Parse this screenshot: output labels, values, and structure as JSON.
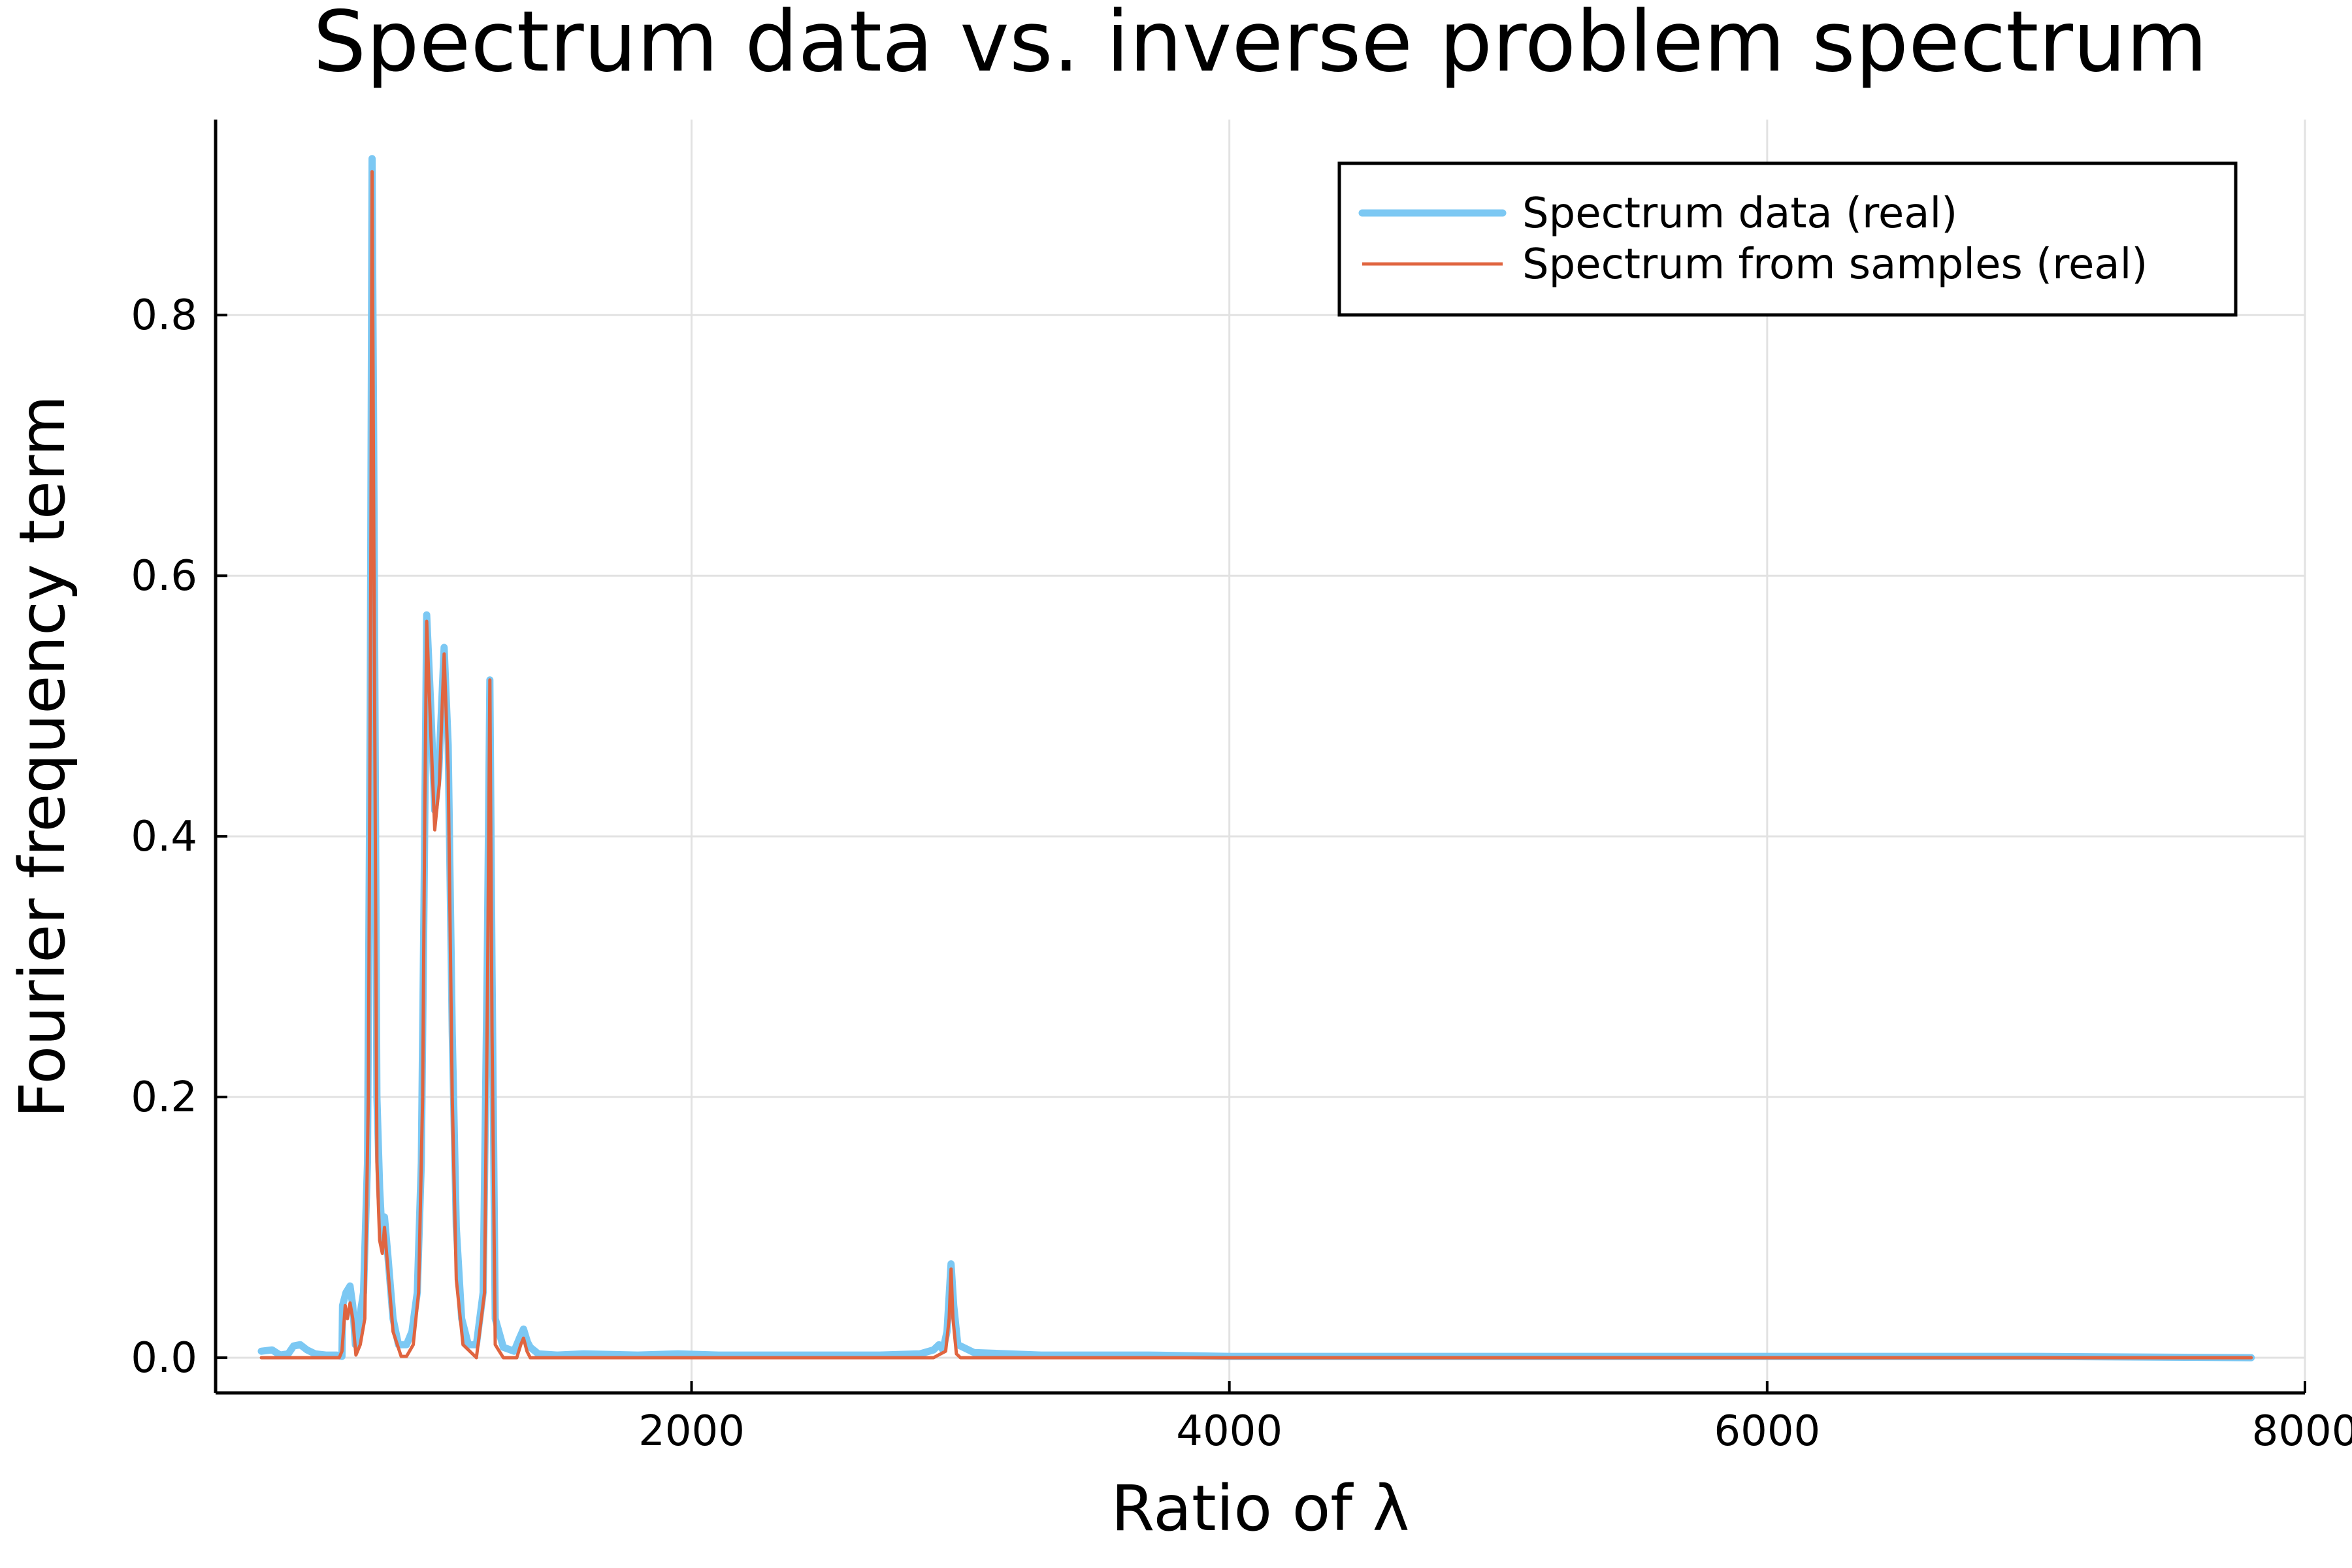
{
  "chart_data": {
    "type": "line",
    "title": "Spectrum data vs. inverse problem spectrum",
    "xlabel": "Ratio of λ",
    "ylabel": "Fourier frequency term",
    "xlim": [
      230,
      8000
    ],
    "ylim": [
      -0.027,
      0.95
    ],
    "xticks": [
      2000,
      4000,
      6000,
      8000
    ],
    "xtick_labels": [
      "2000",
      "4000",
      "6000",
      "8000"
    ],
    "yticks": [
      0.0,
      0.2,
      0.4,
      0.6,
      0.8
    ],
    "ytick_labels": [
      "0.0",
      "0.2",
      "0.4",
      "0.6",
      "0.8"
    ],
    "grid": true,
    "legend_position": "top-right",
    "series": [
      {
        "name": "Spectrum data (real)",
        "color": "#7cc8f3",
        "style": "thick",
        "points": [
          [
            400,
            0.005
          ],
          [
            440,
            0.006
          ],
          [
            470,
            0.002
          ],
          [
            500,
            0.003
          ],
          [
            520,
            0.009
          ],
          [
            545,
            0.01
          ],
          [
            570,
            0.006
          ],
          [
            600,
            0.003
          ],
          [
            640,
            0.002
          ],
          [
            680,
            0.002
          ],
          [
            700,
            0.001
          ],
          [
            702,
            0.04
          ],
          [
            715,
            0.05
          ],
          [
            730,
            0.055
          ],
          [
            740,
            0.04
          ],
          [
            750,
            0.01
          ],
          [
            765,
            0.03
          ],
          [
            780,
            0.05
          ],
          [
            795,
            0.15
          ],
          [
            805,
            0.5
          ],
          [
            812,
            0.92
          ],
          [
            818,
            0.7
          ],
          [
            830,
            0.2
          ],
          [
            840,
            0.13
          ],
          [
            850,
            0.09
          ],
          [
            858,
            0.108
          ],
          [
            870,
            0.08
          ],
          [
            890,
            0.03
          ],
          [
            910,
            0.01
          ],
          [
            940,
            0.01
          ],
          [
            960,
            0.02
          ],
          [
            980,
            0.05
          ],
          [
            995,
            0.15
          ],
          [
            1005,
            0.35
          ],
          [
            1015,
            0.57
          ],
          [
            1030,
            0.5
          ],
          [
            1045,
            0.42
          ],
          [
            1060,
            0.45
          ],
          [
            1080,
            0.545
          ],
          [
            1095,
            0.47
          ],
          [
            1110,
            0.25
          ],
          [
            1125,
            0.1
          ],
          [
            1145,
            0.03
          ],
          [
            1170,
            0.01
          ],
          [
            1200,
            0.01
          ],
          [
            1225,
            0.05
          ],
          [
            1240,
            0.3
          ],
          [
            1250,
            0.52
          ],
          [
            1258,
            0.3
          ],
          [
            1270,
            0.03
          ],
          [
            1300,
            0.008
          ],
          [
            1340,
            0.005
          ],
          [
            1360,
            0.015
          ],
          [
            1375,
            0.022
          ],
          [
            1390,
            0.012
          ],
          [
            1400,
            0.008
          ],
          [
            1430,
            0.003
          ],
          [
            1500,
            0.002
          ],
          [
            1600,
            0.003
          ],
          [
            1800,
            0.002
          ],
          [
            1950,
            0.003
          ],
          [
            2100,
            0.002
          ],
          [
            2400,
            0.002
          ],
          [
            2700,
            0.002
          ],
          [
            2850,
            0.003
          ],
          [
            2900,
            0.006
          ],
          [
            2920,
            0.01
          ],
          [
            2935,
            0.006
          ],
          [
            2950,
            0.02
          ],
          [
            2965,
            0.072
          ],
          [
            2975,
            0.04
          ],
          [
            2990,
            0.01
          ],
          [
            3050,
            0.004
          ],
          [
            3300,
            0.002
          ],
          [
            3700,
            0.002
          ],
          [
            4000,
            0.001
          ],
          [
            4400,
            0.001
          ],
          [
            5000,
            0.001
          ],
          [
            6000,
            0.001
          ],
          [
            7000,
            0.001
          ],
          [
            7800,
            0.0
          ]
        ]
      },
      {
        "name": "Spectrum from samples (real)",
        "color": "#e06540",
        "style": "thin",
        "points": [
          [
            400,
            0.0
          ],
          [
            690,
            0.0
          ],
          [
            700,
            0.005
          ],
          [
            708,
            0.028
          ],
          [
            712,
            0.04
          ],
          [
            720,
            0.03
          ],
          [
            730,
            0.042
          ],
          [
            740,
            0.03
          ],
          [
            752,
            0.002
          ],
          [
            768,
            0.01
          ],
          [
            785,
            0.03
          ],
          [
            798,
            0.2
          ],
          [
            807,
            0.6
          ],
          [
            812,
            0.91
          ],
          [
            818,
            0.65
          ],
          [
            830,
            0.15
          ],
          [
            840,
            0.09
          ],
          [
            850,
            0.08
          ],
          [
            858,
            0.1
          ],
          [
            870,
            0.07
          ],
          [
            890,
            0.02
          ],
          [
            920,
            0.001
          ],
          [
            940,
            0.001
          ],
          [
            965,
            0.01
          ],
          [
            985,
            0.05
          ],
          [
            1000,
            0.2
          ],
          [
            1008,
            0.42
          ],
          [
            1015,
            0.565
          ],
          [
            1030,
            0.48
          ],
          [
            1045,
            0.405
          ],
          [
            1062,
            0.44
          ],
          [
            1080,
            0.54
          ],
          [
            1095,
            0.45
          ],
          [
            1110,
            0.2
          ],
          [
            1125,
            0.06
          ],
          [
            1150,
            0.01
          ],
          [
            1200,
            0.0
          ],
          [
            1230,
            0.05
          ],
          [
            1242,
            0.3
          ],
          [
            1250,
            0.52
          ],
          [
            1258,
            0.25
          ],
          [
            1270,
            0.01
          ],
          [
            1300,
            0.0
          ],
          [
            1350,
            0.0
          ],
          [
            1365,
            0.01
          ],
          [
            1375,
            0.015
          ],
          [
            1388,
            0.005
          ],
          [
            1400,
            0.0
          ],
          [
            2900,
            0.0
          ],
          [
            2945,
            0.005
          ],
          [
            2958,
            0.03
          ],
          [
            2965,
            0.068
          ],
          [
            2972,
            0.03
          ],
          [
            2985,
            0.003
          ],
          [
            3000,
            0.0
          ],
          [
            7800,
            0.0
          ]
        ]
      }
    ]
  }
}
